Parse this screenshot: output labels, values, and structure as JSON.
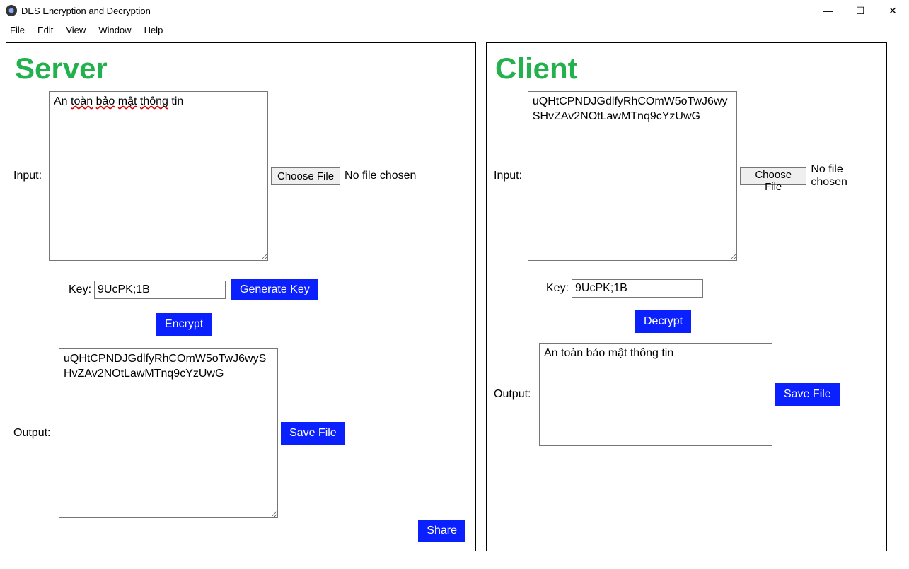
{
  "window": {
    "title": "DES Encryption and Decryption"
  },
  "menu": {
    "file": "File",
    "edit": "Edit",
    "view": "View",
    "window": "Window",
    "help": "Help"
  },
  "win_controls": {
    "minimize": "—",
    "maximize": "☐",
    "close": "✕"
  },
  "labels": {
    "input": "Input:",
    "key": "Key:",
    "output": "Output:",
    "choose_file": "Choose File",
    "no_file": "No file chosen"
  },
  "buttons": {
    "generate_key": "Generate Key",
    "encrypt": "Encrypt",
    "decrypt": "Decrypt",
    "save_file": "Save File",
    "share": "Share"
  },
  "server": {
    "heading": "Server",
    "input_value": "An toàn bảo mật thông tin",
    "key_value": "9UcPK;1B",
    "output_value": "uQHtCPNDJGdlfyRhCOmW5oTwJ6wySHvZAv2NOtLawMTnq9cYzUwG"
  },
  "client": {
    "heading": "Client",
    "input_value": "uQHtCPNDJGdlfyRhCOmW5oTwJ6wySHvZAv2NOtLawMTnq9cYzUwG",
    "key_value": "9UcPK;1B",
    "output_value": "An toàn bảo mật thông tin"
  },
  "colors": {
    "heading": "#22b14c",
    "button_blue": "#0a20ff",
    "border": "#000000"
  }
}
